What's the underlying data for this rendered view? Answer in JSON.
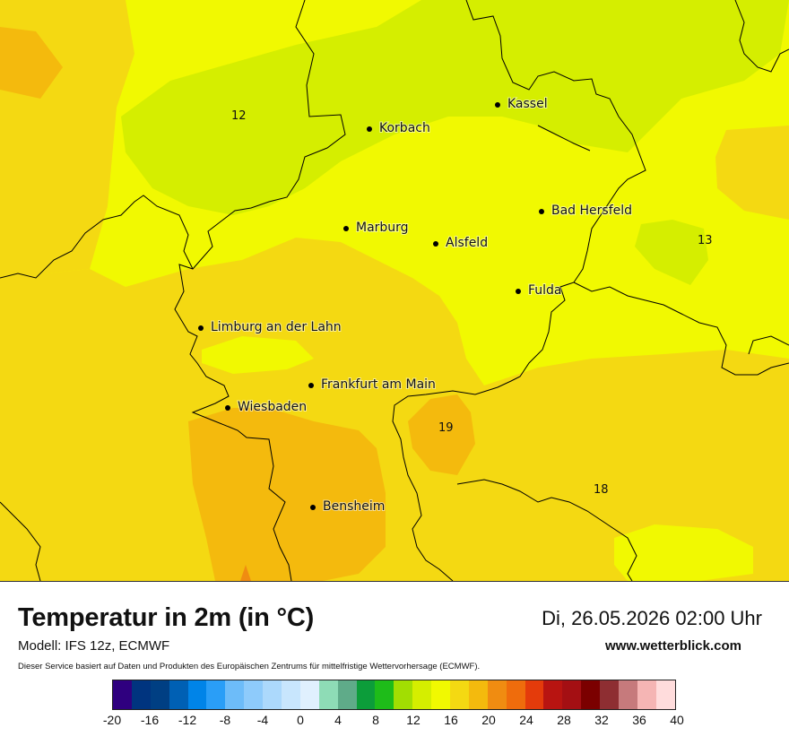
{
  "map": {
    "cities": [
      {
        "name": "Kassel"
      },
      {
        "name": "Korbach"
      },
      {
        "name": "Bad Hersfeld"
      },
      {
        "name": "Marburg"
      },
      {
        "name": "Alsfeld"
      },
      {
        "name": "Fulda"
      },
      {
        "name": "Limburg an der Lahn"
      },
      {
        "name": "Frankfurt am Main"
      },
      {
        "name": "Wiesbaden"
      },
      {
        "name": "Bensheim"
      }
    ],
    "isolines": [
      "12",
      "13",
      "19",
      "18"
    ]
  },
  "footer": {
    "title": "Temperatur in 2m (in °C)",
    "model": "Modell: IFS 12z, ECMWF",
    "datetime": "Di, 26.05.2026 02:00 Uhr",
    "website": "www.wetterblick.com",
    "disclaimer": "Dieser Service basiert auf Daten und Produkten des Europäischen Zentrums für mittelfristige Wettervorhersage (ECMWF)."
  },
  "colorscale": {
    "colors": [
      "#2f007f",
      "#00347f",
      "#003f83",
      "#0060b4",
      "#0084e8",
      "#2a9ef7",
      "#6dbcf9",
      "#8ecbfb",
      "#acd9fc",
      "#c8e6fd",
      "#e0f0fe",
      "#8edcb6",
      "#5fab89",
      "#0c9d3a",
      "#1ebc19",
      "#a2de02",
      "#d5ee00",
      "#f1f901",
      "#f4d912",
      "#f4ba0d",
      "#f08c11",
      "#ef6c0c",
      "#e43b0b",
      "#b81411",
      "#a40f13",
      "#7b0000",
      "#8e2e32",
      "#c67a7c",
      "#f5b5b4",
      "#ffdcdc"
    ],
    "ticks": [
      "-20",
      "-16",
      "-12",
      "-8",
      "-4",
      "0",
      "4",
      "8",
      "12",
      "16",
      "20",
      "24",
      "28",
      "32",
      "36",
      "40"
    ]
  }
}
